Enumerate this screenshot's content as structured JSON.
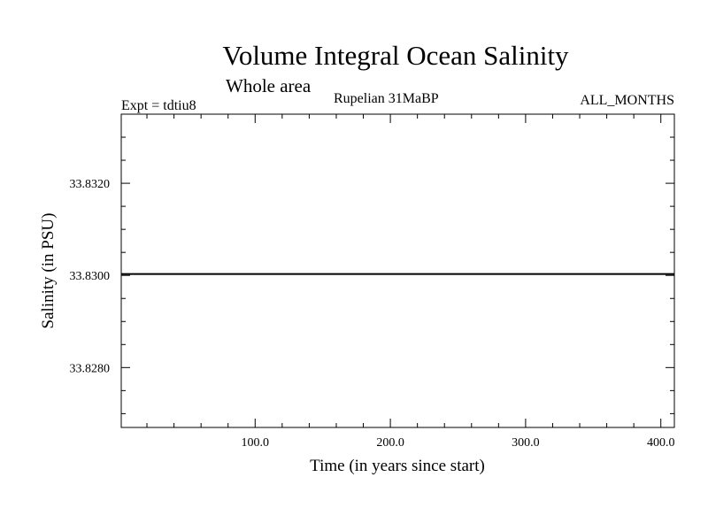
{
  "chart_data": {
    "type": "line",
    "title": "Volume Integral Ocean Salinity",
    "subtitle": "Whole area",
    "period": "Rupelian  31MaBP",
    "experiment": "Expt = tdtiu8",
    "months": "ALL_MONTHS",
    "xlabel": "Time (in years since start)",
    "ylabel": "Salinity (in PSU)",
    "xlim": [
      1,
      410
    ],
    "ylim": [
      33.8267,
      33.8335
    ],
    "x_ticks": [
      {
        "value": 100,
        "label": "100.0"
      },
      {
        "value": 200,
        "label": "200.0"
      },
      {
        "value": 300,
        "label": "300.0"
      },
      {
        "value": 400,
        "label": "400.0"
      }
    ],
    "y_ticks": [
      {
        "value": 33.828,
        "label": "33.8280"
      },
      {
        "value": 33.83,
        "label": "33.8300"
      },
      {
        "value": 33.832,
        "label": "33.8320"
      }
    ],
    "grid": false,
    "series": [
      {
        "x": [
          1,
          410
        ],
        "y": [
          33.83003,
          33.83003
        ]
      }
    ]
  }
}
